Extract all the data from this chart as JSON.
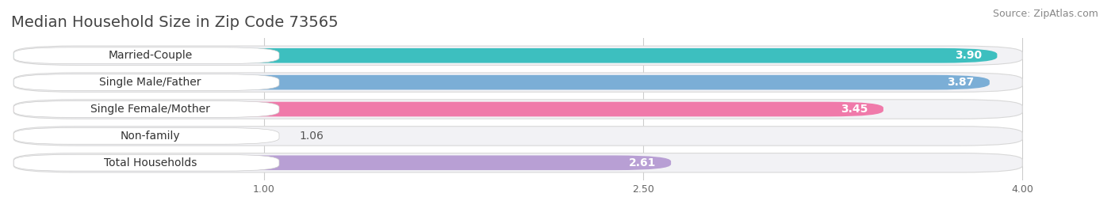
{
  "title": "Median Household Size in Zip Code 73565",
  "source": "Source: ZipAtlas.com",
  "categories": [
    "Married-Couple",
    "Single Male/Father",
    "Single Female/Mother",
    "Non-family",
    "Total Households"
  ],
  "values": [
    3.9,
    3.87,
    3.45,
    1.06,
    2.61
  ],
  "bar_colors": [
    "#3dbfbf",
    "#7baed6",
    "#f07aaa",
    "#f5c890",
    "#b89fd4"
  ],
  "background_color": "#f0f0f0",
  "row_bg_color": "#f0f0f0",
  "xlim": [
    0,
    4.3
  ],
  "xmin": 0,
  "xmax": 4.0,
  "xticks": [
    1.0,
    2.5,
    4.0
  ],
  "label_fontsize": 10,
  "value_fontsize": 10,
  "title_fontsize": 14,
  "source_fontsize": 9
}
